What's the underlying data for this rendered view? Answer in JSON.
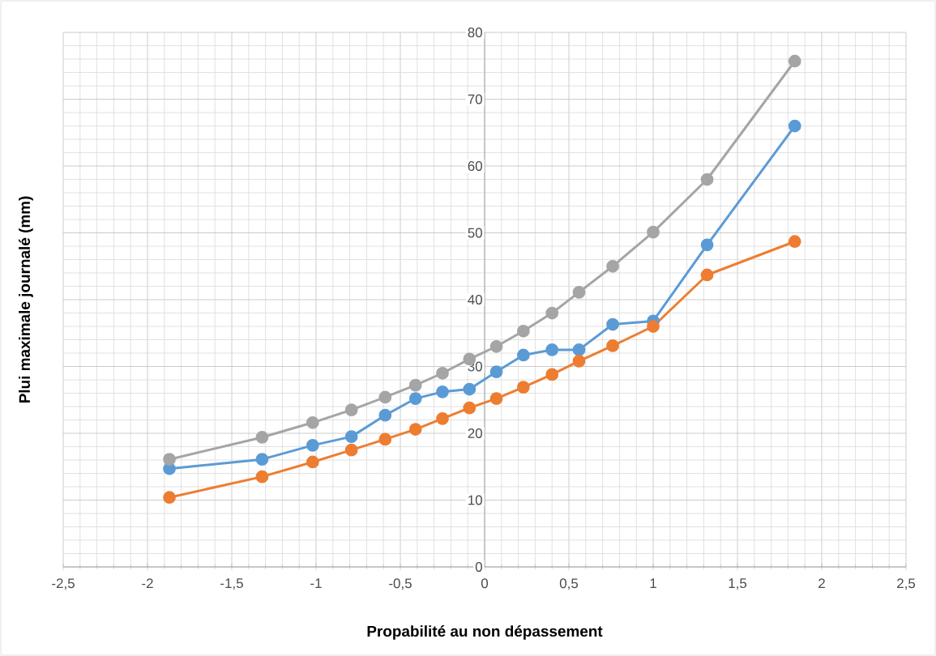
{
  "chart_data": {
    "type": "line",
    "xlabel": "Propabilité au non dépassement",
    "ylabel": "Plui maximale journalé (mm)",
    "x": [
      -1.87,
      -1.32,
      -1.02,
      -0.79,
      -0.59,
      -0.41,
      -0.25,
      -0.09,
      0.07,
      0.23,
      0.4,
      0.56,
      0.76,
      1.0,
      1.32,
      1.84
    ],
    "series": [
      {
        "color": "#5b9bd5",
        "values": [
          14.7,
          16.1,
          18.2,
          19.5,
          22.7,
          25.2,
          26.2,
          26.6,
          29.2,
          31.7,
          32.5,
          32.5,
          36.3,
          36.8,
          48.2,
          66.0
        ]
      },
      {
        "color": "#ed7d31",
        "values": [
          10.4,
          13.5,
          15.7,
          17.5,
          19.1,
          20.6,
          22.2,
          23.8,
          25.2,
          26.9,
          28.8,
          30.8,
          33.1,
          36.0,
          43.7,
          48.7
        ]
      },
      {
        "color": "#a5a5a5",
        "values": [
          16.1,
          19.4,
          21.6,
          23.5,
          25.4,
          27.2,
          29.0,
          31.1,
          33.0,
          35.3,
          38.0,
          41.1,
          45.0,
          50.1,
          58.0,
          75.7
        ]
      }
    ],
    "xlim": [
      -2.5,
      2.5
    ],
    "ylim": [
      0,
      80
    ],
    "xticks": [
      {
        "value": -2.5,
        "label": "-2,5"
      },
      -2,
      {
        "value": -1.5,
        "label": "-1,5"
      },
      -1,
      {
        "value": -0.5,
        "label": "-0,5"
      },
      0,
      {
        "value": 0.5,
        "label": "0,5"
      },
      1,
      {
        "value": 1.5,
        "label": "1,5"
      },
      2,
      {
        "value": 2.5,
        "label": "2,5"
      }
    ],
    "yticks": [
      0,
      10,
      20,
      30,
      40,
      50,
      60,
      70,
      80
    ],
    "grid": true,
    "marker": "circle",
    "line_style": "solid"
  }
}
